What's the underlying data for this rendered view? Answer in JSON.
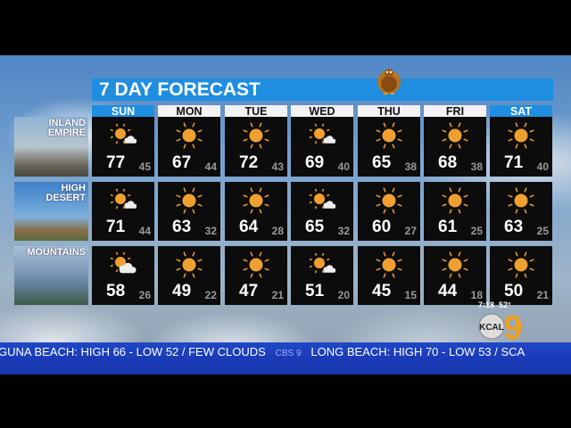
{
  "title": "7 DAY FORECAST",
  "days": [
    "SUN",
    "MON",
    "TUE",
    "WED",
    "THU",
    "FRI",
    "SAT"
  ],
  "weekend_color": "#1f8ee0",
  "regions": [
    {
      "name_lines": [
        "INLAND",
        "EMPIRE"
      ],
      "forecast": [
        {
          "hi": "77",
          "lo": "45",
          "icon": "sun-cloud-icon"
        },
        {
          "hi": "67",
          "lo": "44",
          "icon": "sun-icon"
        },
        {
          "hi": "72",
          "lo": "43",
          "icon": "sun-icon"
        },
        {
          "hi": "69",
          "lo": "40",
          "icon": "sun-cloud-icon"
        },
        {
          "hi": "65",
          "lo": "38",
          "icon": "sun-icon"
        },
        {
          "hi": "68",
          "lo": "38",
          "icon": "sun-icon"
        },
        {
          "hi": "71",
          "lo": "40",
          "icon": "sun-icon"
        }
      ]
    },
    {
      "name_lines": [
        "HIGH",
        "DESERT"
      ],
      "forecast": [
        {
          "hi": "71",
          "lo": "44",
          "icon": "sun-cloud-icon"
        },
        {
          "hi": "63",
          "lo": "32",
          "icon": "sun-icon"
        },
        {
          "hi": "64",
          "lo": "28",
          "icon": "sun-icon"
        },
        {
          "hi": "65",
          "lo": "32",
          "icon": "sun-cloud-icon"
        },
        {
          "hi": "60",
          "lo": "27",
          "icon": "sun-icon"
        },
        {
          "hi": "61",
          "lo": "25",
          "icon": "sun-icon"
        },
        {
          "hi": "63",
          "lo": "25",
          "icon": "sun-icon"
        }
      ]
    },
    {
      "name_lines": [
        "MOUNTAINS",
        ""
      ],
      "forecast": [
        {
          "hi": "58",
          "lo": "26",
          "icon": "partly-cloudy-icon"
        },
        {
          "hi": "49",
          "lo": "22",
          "icon": "sun-icon"
        },
        {
          "hi": "47",
          "lo": "21",
          "icon": "sun-icon"
        },
        {
          "hi": "51",
          "lo": "20",
          "icon": "sun-cloud-icon"
        },
        {
          "hi": "45",
          "lo": "15",
          "icon": "sun-icon"
        },
        {
          "hi": "44",
          "lo": "18",
          "icon": "sun-icon"
        },
        {
          "hi": "50",
          "lo": "21",
          "icon": "sun-icon"
        }
      ]
    }
  ],
  "station": {
    "logo": "KCAL 9",
    "time": "7:18",
    "temp": "52°"
  },
  "ticker": {
    "text": "GUNA BEACH: HIGH 66 - LOW 52 / FEW CLOUDS",
    "separator_logo": "CBS 9",
    "text2": "LONG BEACH: HIGH 70 - LOW 53 / SCA"
  }
}
